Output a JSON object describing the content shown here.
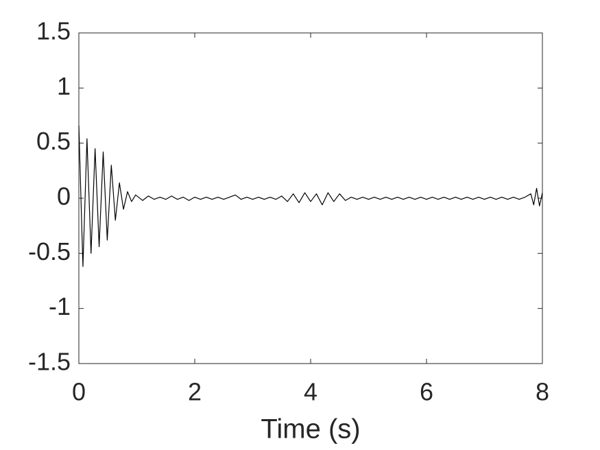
{
  "chart_data": {
    "type": "line",
    "xlabel": "Time (s)",
    "x": [
      0,
      0.07,
      0.14,
      0.21,
      0.28,
      0.35,
      0.42,
      0.49,
      0.56,
      0.63,
      0.7,
      0.77,
      0.84,
      0.91,
      0.98,
      1.1,
      1.2,
      1.3,
      1.4,
      1.5,
      1.6,
      1.7,
      1.8,
      1.9,
      2.0,
      2.1,
      2.2,
      2.3,
      2.4,
      2.5,
      2.6,
      2.7,
      2.8,
      2.9,
      3.0,
      3.1,
      3.2,
      3.3,
      3.4,
      3.5,
      3.6,
      3.7,
      3.8,
      3.9,
      4.0,
      4.1,
      4.2,
      4.3,
      4.4,
      4.5,
      4.6,
      4.7,
      4.8,
      4.9,
      5.0,
      5.1,
      5.2,
      5.3,
      5.4,
      5.5,
      5.6,
      5.7,
      5.8,
      5.9,
      6.0,
      6.1,
      6.2,
      6.3,
      6.4,
      6.5,
      6.6,
      6.7,
      6.8,
      6.9,
      7.0,
      7.1,
      7.2,
      7.3,
      7.4,
      7.5,
      7.6,
      7.7,
      7.8,
      7.85,
      7.9,
      7.95,
      8.0
    ],
    "series": [
      {
        "color": "#000000",
        "values": [
          0.66,
          -0.62,
          0.54,
          -0.5,
          0.45,
          -0.44,
          0.42,
          -0.38,
          0.3,
          -0.2,
          0.14,
          -0.1,
          0.06,
          -0.03,
          0.03,
          -0.02,
          0.02,
          -0.01,
          0.01,
          -0.01,
          0.02,
          -0.01,
          0.01,
          -0.02,
          0.01,
          -0.01,
          0.01,
          -0.01,
          0.01,
          -0.01,
          0.01,
          0.03,
          -0.01,
          0.01,
          -0.01,
          0.01,
          -0.01,
          0.01,
          -0.01,
          0.02,
          -0.03,
          0.04,
          -0.04,
          0.05,
          -0.03,
          0.04,
          -0.06,
          0.05,
          -0.03,
          0.04,
          -0.02,
          0.01,
          -0.01,
          0.01,
          -0.01,
          0.01,
          -0.01,
          0.01,
          -0.01,
          0.01,
          -0.01,
          0.01,
          -0.01,
          0.01,
          -0.01,
          0.01,
          -0.01,
          0.01,
          -0.01,
          0.01,
          -0.01,
          0.01,
          -0.01,
          0.01,
          -0.01,
          0.01,
          -0.01,
          0.01,
          -0.01,
          0.01,
          -0.01,
          0.01,
          0.04,
          -0.06,
          0.09,
          -0.07,
          0.05
        ]
      }
    ],
    "xlim": [
      0,
      8
    ],
    "xticks": [
      0,
      2,
      4,
      6,
      8
    ],
    "ylim": [
      -1.5,
      1.5
    ],
    "yticks": [
      -1.5,
      -1,
      -0.5,
      0,
      0.5,
      1,
      1.5
    ]
  }
}
